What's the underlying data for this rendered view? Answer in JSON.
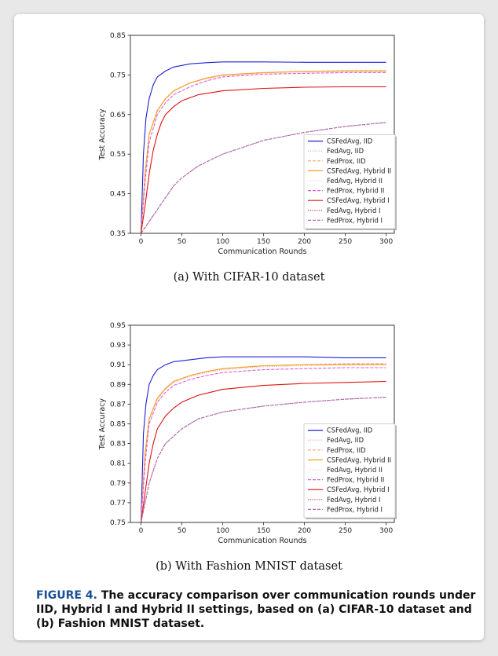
{
  "figure": {
    "subcaption_a": "(a)  With CIFAR-10 dataset",
    "subcaption_b": "(b)  With Fashion MNIST dataset",
    "caption_lead": "FIGURE 4.",
    "caption_text": "  The accuracy comparison over communication rounds under IID, Hybrid I and Hybrid II settings, based on (a)  CIFAR-10 dataset and (b) Fashion MNIST dataset."
  },
  "chart_data": [
    {
      "type": "line",
      "xlabel": "Communication Rounds",
      "ylabel": "Test Accuracy",
      "xlim": [
        -13,
        310
      ],
      "ylim": [
        0.35,
        0.85
      ],
      "xticks": [
        0,
        50,
        100,
        150,
        200,
        250,
        300
      ],
      "yticks": [
        0.35,
        0.45,
        0.55,
        0.65,
        0.75,
        0.85
      ],
      "ytick_labels": [
        "0.35",
        "0.45",
        "0.55",
        "0.65",
        "0.75",
        "0.85"
      ],
      "legend_position": "lower right",
      "series": [
        {
          "name": "CSFedAvg, IID",
          "color": "#1f1fd6",
          "style": "solid",
          "x": [
            0,
            3,
            6,
            10,
            15,
            20,
            30,
            40,
            60,
            80,
            100,
            150,
            200,
            250,
            300
          ],
          "y": [
            0.35,
            0.55,
            0.64,
            0.69,
            0.725,
            0.745,
            0.76,
            0.77,
            0.778,
            0.781,
            0.783,
            0.783,
            0.782,
            0.782,
            0.782
          ]
        },
        {
          "name": "FedAvg, IID",
          "color": "#f0a8a8",
          "style": "dotted",
          "x": [
            0,
            5,
            10,
            20,
            30,
            40,
            60,
            80,
            100,
            150,
            200,
            250,
            300
          ],
          "y": [
            0.35,
            0.5,
            0.6,
            0.66,
            0.69,
            0.71,
            0.73,
            0.74,
            0.748,
            0.755,
            0.758,
            0.76,
            0.76
          ]
        },
        {
          "name": "FedProx, IID",
          "color": "#f2a070",
          "style": "dashed",
          "x": [
            0,
            5,
            10,
            20,
            30,
            40,
            60,
            80,
            100,
            150,
            200,
            250,
            300
          ],
          "y": [
            0.35,
            0.5,
            0.6,
            0.66,
            0.69,
            0.71,
            0.73,
            0.742,
            0.75,
            0.756,
            0.759,
            0.761,
            0.761
          ]
        },
        {
          "name": "CSFedAvg, Hybrid II",
          "color": "#f5a020",
          "style": "solid",
          "x": [
            0,
            5,
            10,
            20,
            30,
            40,
            60,
            80,
            100,
            150,
            200,
            250,
            300
          ],
          "y": [
            0.35,
            0.5,
            0.6,
            0.66,
            0.69,
            0.71,
            0.73,
            0.742,
            0.75,
            0.756,
            0.759,
            0.76,
            0.76
          ]
        },
        {
          "name": "FedAvg, Hybrid II",
          "color": "#f7d2e4",
          "style": "dotted",
          "x": [
            0,
            5,
            10,
            20,
            30,
            40,
            60,
            80,
            100,
            150,
            200,
            250,
            300
          ],
          "y": [
            0.35,
            0.48,
            0.58,
            0.65,
            0.68,
            0.7,
            0.72,
            0.735,
            0.745,
            0.752,
            0.755,
            0.757,
            0.757
          ]
        },
        {
          "name": "FedProx, Hybrid II",
          "color": "#d960d9",
          "style": "dashed",
          "x": [
            0,
            5,
            10,
            20,
            30,
            40,
            60,
            80,
            100,
            150,
            200,
            250,
            300
          ],
          "y": [
            0.35,
            0.48,
            0.58,
            0.65,
            0.68,
            0.7,
            0.72,
            0.735,
            0.745,
            0.752,
            0.754,
            0.756,
            0.756
          ]
        },
        {
          "name": "CSFedAvg, Hybrid I",
          "color": "#e01010",
          "style": "solid",
          "x": [
            0,
            5,
            10,
            15,
            20,
            25,
            30,
            40,
            50,
            70,
            100,
            150,
            200,
            250,
            300
          ],
          "y": [
            0.35,
            0.42,
            0.5,
            0.56,
            0.6,
            0.63,
            0.65,
            0.67,
            0.685,
            0.7,
            0.71,
            0.716,
            0.719,
            0.72,
            0.72
          ]
        },
        {
          "name": "FedAvg, Hybrid I",
          "color": "#c0306a",
          "style": "dotted",
          "x": [
            0,
            10,
            20,
            30,
            40,
            50,
            70,
            100,
            150,
            200,
            250,
            300
          ],
          "y": [
            0.35,
            0.38,
            0.41,
            0.44,
            0.47,
            0.49,
            0.52,
            0.55,
            0.585,
            0.605,
            0.62,
            0.63
          ]
        },
        {
          "name": "FedProx, Hybrid I",
          "color": "#a870b0",
          "style": "dashed",
          "x": [
            0,
            10,
            20,
            30,
            40,
            50,
            70,
            100,
            150,
            200,
            250,
            300
          ],
          "y": [
            0.35,
            0.38,
            0.41,
            0.44,
            0.47,
            0.49,
            0.52,
            0.55,
            0.585,
            0.605,
            0.62,
            0.63
          ]
        }
      ]
    },
    {
      "type": "line",
      "xlabel": "Communication Rounds",
      "ylabel": "Test Accuracy",
      "xlim": [
        -13,
        310
      ],
      "ylim": [
        0.75,
        0.95
      ],
      "xticks": [
        0,
        50,
        100,
        150,
        200,
        250,
        300
      ],
      "yticks": [
        0.75,
        0.77,
        0.79,
        0.81,
        0.83,
        0.85,
        0.87,
        0.89,
        0.91,
        0.93,
        0.95
      ],
      "ytick_labels": [
        "0.75",
        "0.77",
        "0.79",
        "0.81",
        "0.83",
        "0.85",
        "0.87",
        "0.89",
        "0.91",
        "0.93",
        "0.95"
      ],
      "legend_position": "lower right",
      "series": [
        {
          "name": "CSFedAvg, IID",
          "color": "#1f1fd6",
          "style": "solid",
          "x": [
            0,
            3,
            6,
            10,
            15,
            20,
            30,
            40,
            60,
            80,
            100,
            150,
            200,
            250,
            300
          ],
          "y": [
            0.75,
            0.84,
            0.87,
            0.89,
            0.899,
            0.905,
            0.91,
            0.913,
            0.915,
            0.917,
            0.918,
            0.918,
            0.918,
            0.917,
            0.917
          ]
        },
        {
          "name": "FedAvg, IID",
          "color": "#f0a8a8",
          "style": "dotted",
          "x": [
            0,
            5,
            10,
            20,
            30,
            40,
            60,
            80,
            100,
            150,
            200,
            250,
            300
          ],
          "y": [
            0.75,
            0.82,
            0.855,
            0.875,
            0.885,
            0.892,
            0.898,
            0.902,
            0.905,
            0.908,
            0.909,
            0.91,
            0.91
          ]
        },
        {
          "name": "FedProx, IID",
          "color": "#f2a070",
          "style": "dashed",
          "x": [
            0,
            5,
            10,
            20,
            30,
            40,
            60,
            80,
            100,
            150,
            200,
            250,
            300
          ],
          "y": [
            0.75,
            0.82,
            0.855,
            0.876,
            0.886,
            0.893,
            0.899,
            0.903,
            0.906,
            0.909,
            0.91,
            0.911,
            0.911
          ]
        },
        {
          "name": "CSFedAvg, Hybrid II",
          "color": "#f5a020",
          "style": "solid",
          "x": [
            0,
            5,
            10,
            20,
            30,
            40,
            60,
            80,
            100,
            150,
            200,
            250,
            300
          ],
          "y": [
            0.75,
            0.82,
            0.855,
            0.876,
            0.886,
            0.893,
            0.899,
            0.903,
            0.906,
            0.909,
            0.91,
            0.91,
            0.91
          ]
        },
        {
          "name": "FedAvg, Hybrid II",
          "color": "#f7d2e4",
          "style": "dotted",
          "x": [
            0,
            5,
            10,
            20,
            30,
            40,
            60,
            80,
            100,
            150,
            200,
            250,
            300
          ],
          "y": [
            0.75,
            0.81,
            0.85,
            0.872,
            0.882,
            0.889,
            0.895,
            0.899,
            0.902,
            0.905,
            0.906,
            0.907,
            0.907
          ]
        },
        {
          "name": "FedProx, Hybrid II",
          "color": "#d960d9",
          "style": "dashed",
          "x": [
            0,
            5,
            10,
            20,
            30,
            40,
            60,
            80,
            100,
            150,
            200,
            250,
            300
          ],
          "y": [
            0.75,
            0.81,
            0.85,
            0.872,
            0.882,
            0.889,
            0.895,
            0.899,
            0.902,
            0.905,
            0.906,
            0.907,
            0.907
          ]
        },
        {
          "name": "CSFedAvg, Hybrid I",
          "color": "#e01010",
          "style": "solid",
          "x": [
            0,
            5,
            10,
            15,
            20,
            30,
            40,
            50,
            70,
            100,
            150,
            200,
            250,
            300
          ],
          "y": [
            0.75,
            0.78,
            0.81,
            0.83,
            0.845,
            0.858,
            0.866,
            0.872,
            0.879,
            0.885,
            0.889,
            0.891,
            0.892,
            0.893
          ]
        },
        {
          "name": "FedAvg, Hybrid I",
          "color": "#c0306a",
          "style": "dotted",
          "x": [
            0,
            10,
            20,
            30,
            50,
            70,
            100,
            150,
            200,
            250,
            300
          ],
          "y": [
            0.75,
            0.79,
            0.815,
            0.83,
            0.845,
            0.855,
            0.862,
            0.868,
            0.872,
            0.875,
            0.877
          ]
        },
        {
          "name": "FedProx, Hybrid I",
          "color": "#a870b0",
          "style": "dashed",
          "x": [
            0,
            10,
            20,
            30,
            50,
            70,
            100,
            150,
            200,
            250,
            300
          ],
          "y": [
            0.75,
            0.79,
            0.815,
            0.83,
            0.845,
            0.855,
            0.862,
            0.868,
            0.872,
            0.875,
            0.877
          ]
        }
      ]
    }
  ]
}
